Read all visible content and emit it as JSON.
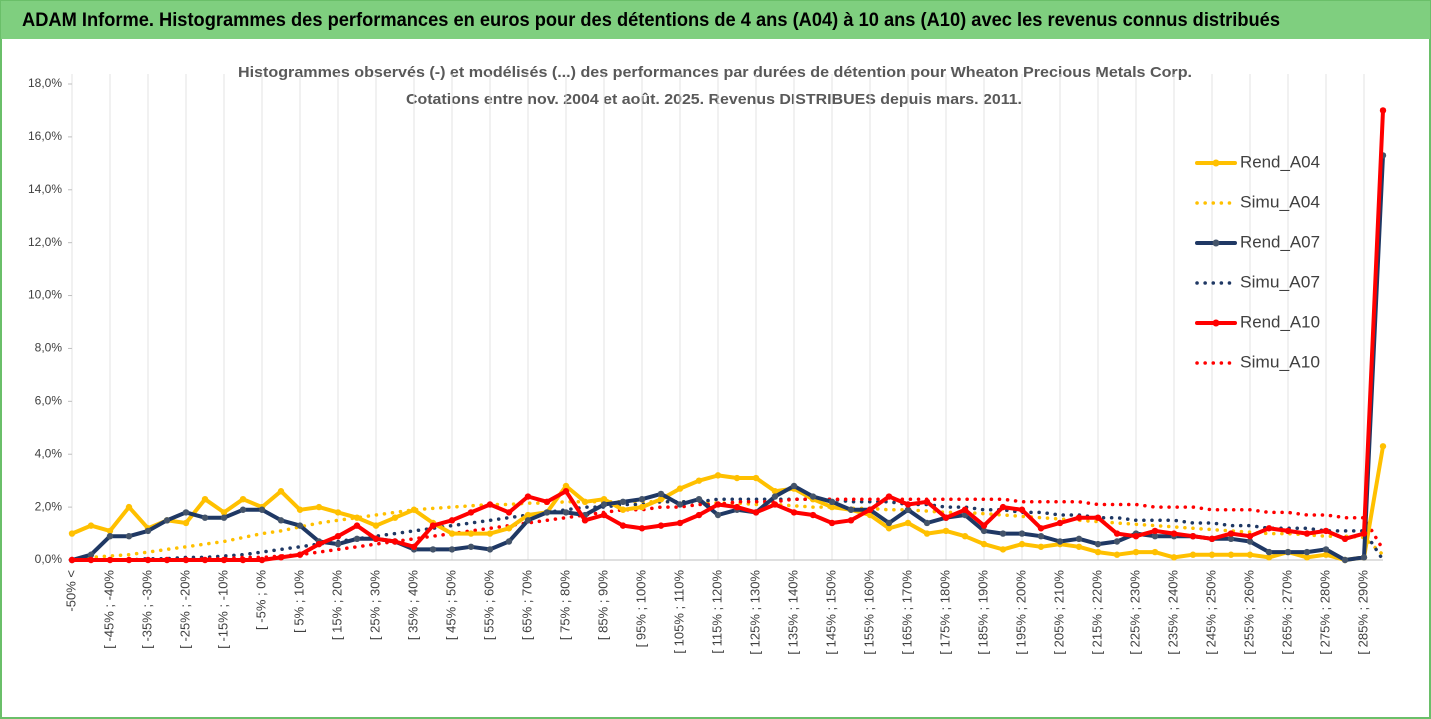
{
  "header": {
    "title": "ADAM Informe. Histogrammes des performances en euros pour des détentions de 4 ans (A04) à 10 ans (A10) avec les revenus connus distribués"
  },
  "chart_data": {
    "type": "line",
    "title": [
      "Histogrammes observés (-) et modélisés (...) des performances par durées de détention pour Wheaton Precious Metals Corp.",
      "Cotations entre nov. 2004 et août. 2025. Revenus DISTRIBUES depuis mars. 2011."
    ],
    "categories": [
      "-50% <",
      null,
      "[ -45% ; -40%",
      null,
      "[ -35% ; -30%",
      null,
      "[ -25% ; -20%",
      null,
      "[ -15% ; -10%",
      null,
      "[ -5% ; 0%",
      null,
      "[ 5% ; 10%",
      null,
      "[ 15% ; 20%",
      null,
      "[ 25% ; 30%",
      null,
      "[ 35% ; 40%",
      null,
      "[ 45% ; 50%",
      null,
      "[ 55% ; 60%",
      null,
      "[ 65% ; 70%",
      null,
      "[ 75% ; 80%",
      null,
      "[ 85% ; 90%",
      null,
      "[ 95% ; 100%",
      null,
      "[ 105% ; 110%",
      null,
      "[ 115% ; 120%",
      null,
      "[ 125% ; 130%",
      null,
      "[ 135% ; 140%",
      null,
      "[ 145% ; 150%",
      null,
      "[ 155% ; 160%",
      null,
      "[ 165% ; 170%",
      null,
      "[ 175% ; 180%",
      null,
      "[ 185% ; 190%",
      null,
      "[ 195% ; 200%",
      null,
      "[ 205% ; 210%",
      null,
      "[ 215% ; 220%",
      null,
      "[ 225% ; 230%",
      null,
      "[ 235% ; 240%",
      null,
      "[ 245% ; 250%",
      null,
      "[ 255% ; 260%",
      null,
      "[ 265% ; 270%",
      null,
      "[ 275% ; 280%",
      null,
      "[ 285% ; 290%",
      null
    ],
    "ylim": [
      0,
      18
    ],
    "yticks": [
      {
        "value": 0,
        "label": "0,0%"
      },
      {
        "value": 2,
        "label": "2,0%"
      },
      {
        "value": 4,
        "label": "4,0%"
      },
      {
        "value": 6,
        "label": "6,0%"
      },
      {
        "value": 8,
        "label": "8,0%"
      },
      {
        "value": 10,
        "label": "10,0%"
      },
      {
        "value": 12,
        "label": "12,0%"
      },
      {
        "value": 14,
        "label": "14,0%"
      },
      {
        "value": 16,
        "label": "16,0%"
      },
      {
        "value": 18,
        "label": "18,0%"
      }
    ],
    "series": [
      {
        "name": "Rend_A04",
        "color": "#ffc000",
        "line_style": "solid",
        "values": [
          1.0,
          1.3,
          1.1,
          2.0,
          1.2,
          1.5,
          1.4,
          2.3,
          1.8,
          2.3,
          2.0,
          2.6,
          1.9,
          2.0,
          1.8,
          1.6,
          1.3,
          1.6,
          1.9,
          1.4,
          1.0,
          1.0,
          1.0,
          1.2,
          1.7,
          1.8,
          2.8,
          2.2,
          2.3,
          1.9,
          2.0,
          2.3,
          2.7,
          3.0,
          3.2,
          3.1,
          3.1,
          2.6,
          2.7,
          2.3,
          2.0,
          1.9,
          1.7,
          1.2,
          1.4,
          1.0,
          1.1,
          0.9,
          0.6,
          0.4,
          0.6,
          0.5,
          0.6,
          0.5,
          0.3,
          0.2,
          0.3,
          0.3,
          0.1,
          0.2,
          0.2,
          0.2,
          0.2,
          0.1,
          0.3,
          0.1,
          0.2,
          0.0,
          0.1,
          4.3
        ]
      },
      {
        "name": "Simu_A04",
        "color": "#ffc000",
        "line_style": "dotted",
        "values": [
          0.05,
          0.1,
          0.15,
          0.2,
          0.3,
          0.4,
          0.5,
          0.6,
          0.7,
          0.85,
          1.0,
          1.1,
          1.25,
          1.4,
          1.5,
          1.6,
          1.7,
          1.8,
          1.9,
          1.95,
          2.0,
          2.05,
          2.1,
          2.1,
          2.15,
          2.15,
          2.2,
          2.2,
          2.2,
          2.2,
          2.2,
          2.2,
          2.2,
          2.2,
          2.15,
          2.15,
          2.1,
          2.1,
          2.05,
          2.0,
          2.0,
          1.95,
          1.95,
          1.9,
          1.9,
          1.85,
          1.8,
          1.8,
          1.75,
          1.7,
          1.65,
          1.6,
          1.55,
          1.5,
          1.45,
          1.4,
          1.35,
          1.3,
          1.25,
          1.2,
          1.15,
          1.1,
          1.05,
          1.0,
          1.0,
          0.95,
          0.9,
          0.9,
          0.85,
          0.2
        ]
      },
      {
        "name": "Rend_A07",
        "color": "#1f3864",
        "line_style": "solid",
        "values": [
          0,
          0.2,
          0.9,
          0.9,
          1.1,
          1.5,
          1.8,
          1.6,
          1.6,
          1.9,
          1.9,
          1.5,
          1.3,
          0.7,
          0.6,
          0.8,
          0.8,
          0.7,
          0.4,
          0.4,
          0.4,
          0.5,
          0.4,
          0.7,
          1.5,
          1.8,
          1.8,
          1.7,
          2.1,
          2.2,
          2.3,
          2.5,
          2.1,
          2.3,
          1.7,
          1.9,
          1.8,
          2.4,
          2.8,
          2.4,
          2.2,
          1.9,
          1.9,
          1.4,
          1.9,
          1.4,
          1.6,
          1.7,
          1.1,
          1.0,
          1.0,
          0.9,
          0.7,
          0.8,
          0.6,
          0.7,
          1.0,
          0.9,
          0.9,
          0.9,
          0.8,
          0.8,
          0.7,
          0.3,
          0.3,
          0.3,
          0.4,
          0.0,
          0.1,
          15.3
        ]
      },
      {
        "name": "Simu_A07",
        "color": "#1f3864",
        "line_style": "dotted",
        "values": [
          0,
          0,
          0,
          0,
          0.05,
          0.05,
          0.1,
          0.1,
          0.15,
          0.2,
          0.3,
          0.4,
          0.5,
          0.6,
          0.7,
          0.8,
          0.9,
          1.0,
          1.1,
          1.2,
          1.3,
          1.4,
          1.5,
          1.6,
          1.7,
          1.8,
          1.9,
          2.0,
          2.0,
          2.1,
          2.1,
          2.2,
          2.2,
          2.2,
          2.3,
          2.3,
          2.3,
          2.3,
          2.3,
          2.3,
          2.3,
          2.2,
          2.2,
          2.2,
          2.1,
          2.1,
          2.0,
          2.0,
          1.9,
          1.9,
          1.8,
          1.8,
          1.7,
          1.7,
          1.6,
          1.6,
          1.5,
          1.5,
          1.5,
          1.4,
          1.4,
          1.3,
          1.3,
          1.2,
          1.2,
          1.2,
          1.1,
          1.1,
          1.1,
          0.0
        ]
      },
      {
        "name": "Rend_A10",
        "color": "#ff0000",
        "line_style": "solid",
        "values": [
          0,
          0,
          0,
          0,
          0,
          0,
          0,
          0,
          0,
          0,
          0,
          0.1,
          0.2,
          0.6,
          0.9,
          1.3,
          0.8,
          0.7,
          0.5,
          1.3,
          1.5,
          1.8,
          2.1,
          1.8,
          2.4,
          2.2,
          2.6,
          1.5,
          1.7,
          1.3,
          1.2,
          1.3,
          1.4,
          1.7,
          2.1,
          2.0,
          1.8,
          2.1,
          1.8,
          1.7,
          1.4,
          1.5,
          1.9,
          2.4,
          2.1,
          2.2,
          1.6,
          1.9,
          1.3,
          2.0,
          1.9,
          1.2,
          1.4,
          1.6,
          1.6,
          1.0,
          0.9,
          1.1,
          1.0,
          0.9,
          0.8,
          1.0,
          0.9,
          1.2,
          1.1,
          1.0,
          1.1,
          0.8,
          1.0,
          17.0
        ]
      },
      {
        "name": "Simu_A10",
        "color": "#ff0000",
        "line_style": "dotted",
        "values": [
          0,
          0,
          0,
          0,
          0,
          0,
          0,
          0.05,
          0.05,
          0.1,
          0.1,
          0.15,
          0.2,
          0.3,
          0.4,
          0.5,
          0.6,
          0.7,
          0.8,
          0.9,
          1.0,
          1.1,
          1.2,
          1.3,
          1.4,
          1.5,
          1.6,
          1.7,
          1.8,
          1.9,
          1.9,
          2.0,
          2.0,
          2.1,
          2.1,
          2.2,
          2.2,
          2.2,
          2.3,
          2.3,
          2.3,
          2.3,
          2.3,
          2.3,
          2.3,
          2.3,
          2.3,
          2.3,
          2.3,
          2.3,
          2.2,
          2.2,
          2.2,
          2.2,
          2.1,
          2.1,
          2.1,
          2.0,
          2.0,
          2.0,
          1.9,
          1.9,
          1.9,
          1.8,
          1.8,
          1.7,
          1.7,
          1.6,
          1.6,
          0.4
        ]
      }
    ]
  }
}
